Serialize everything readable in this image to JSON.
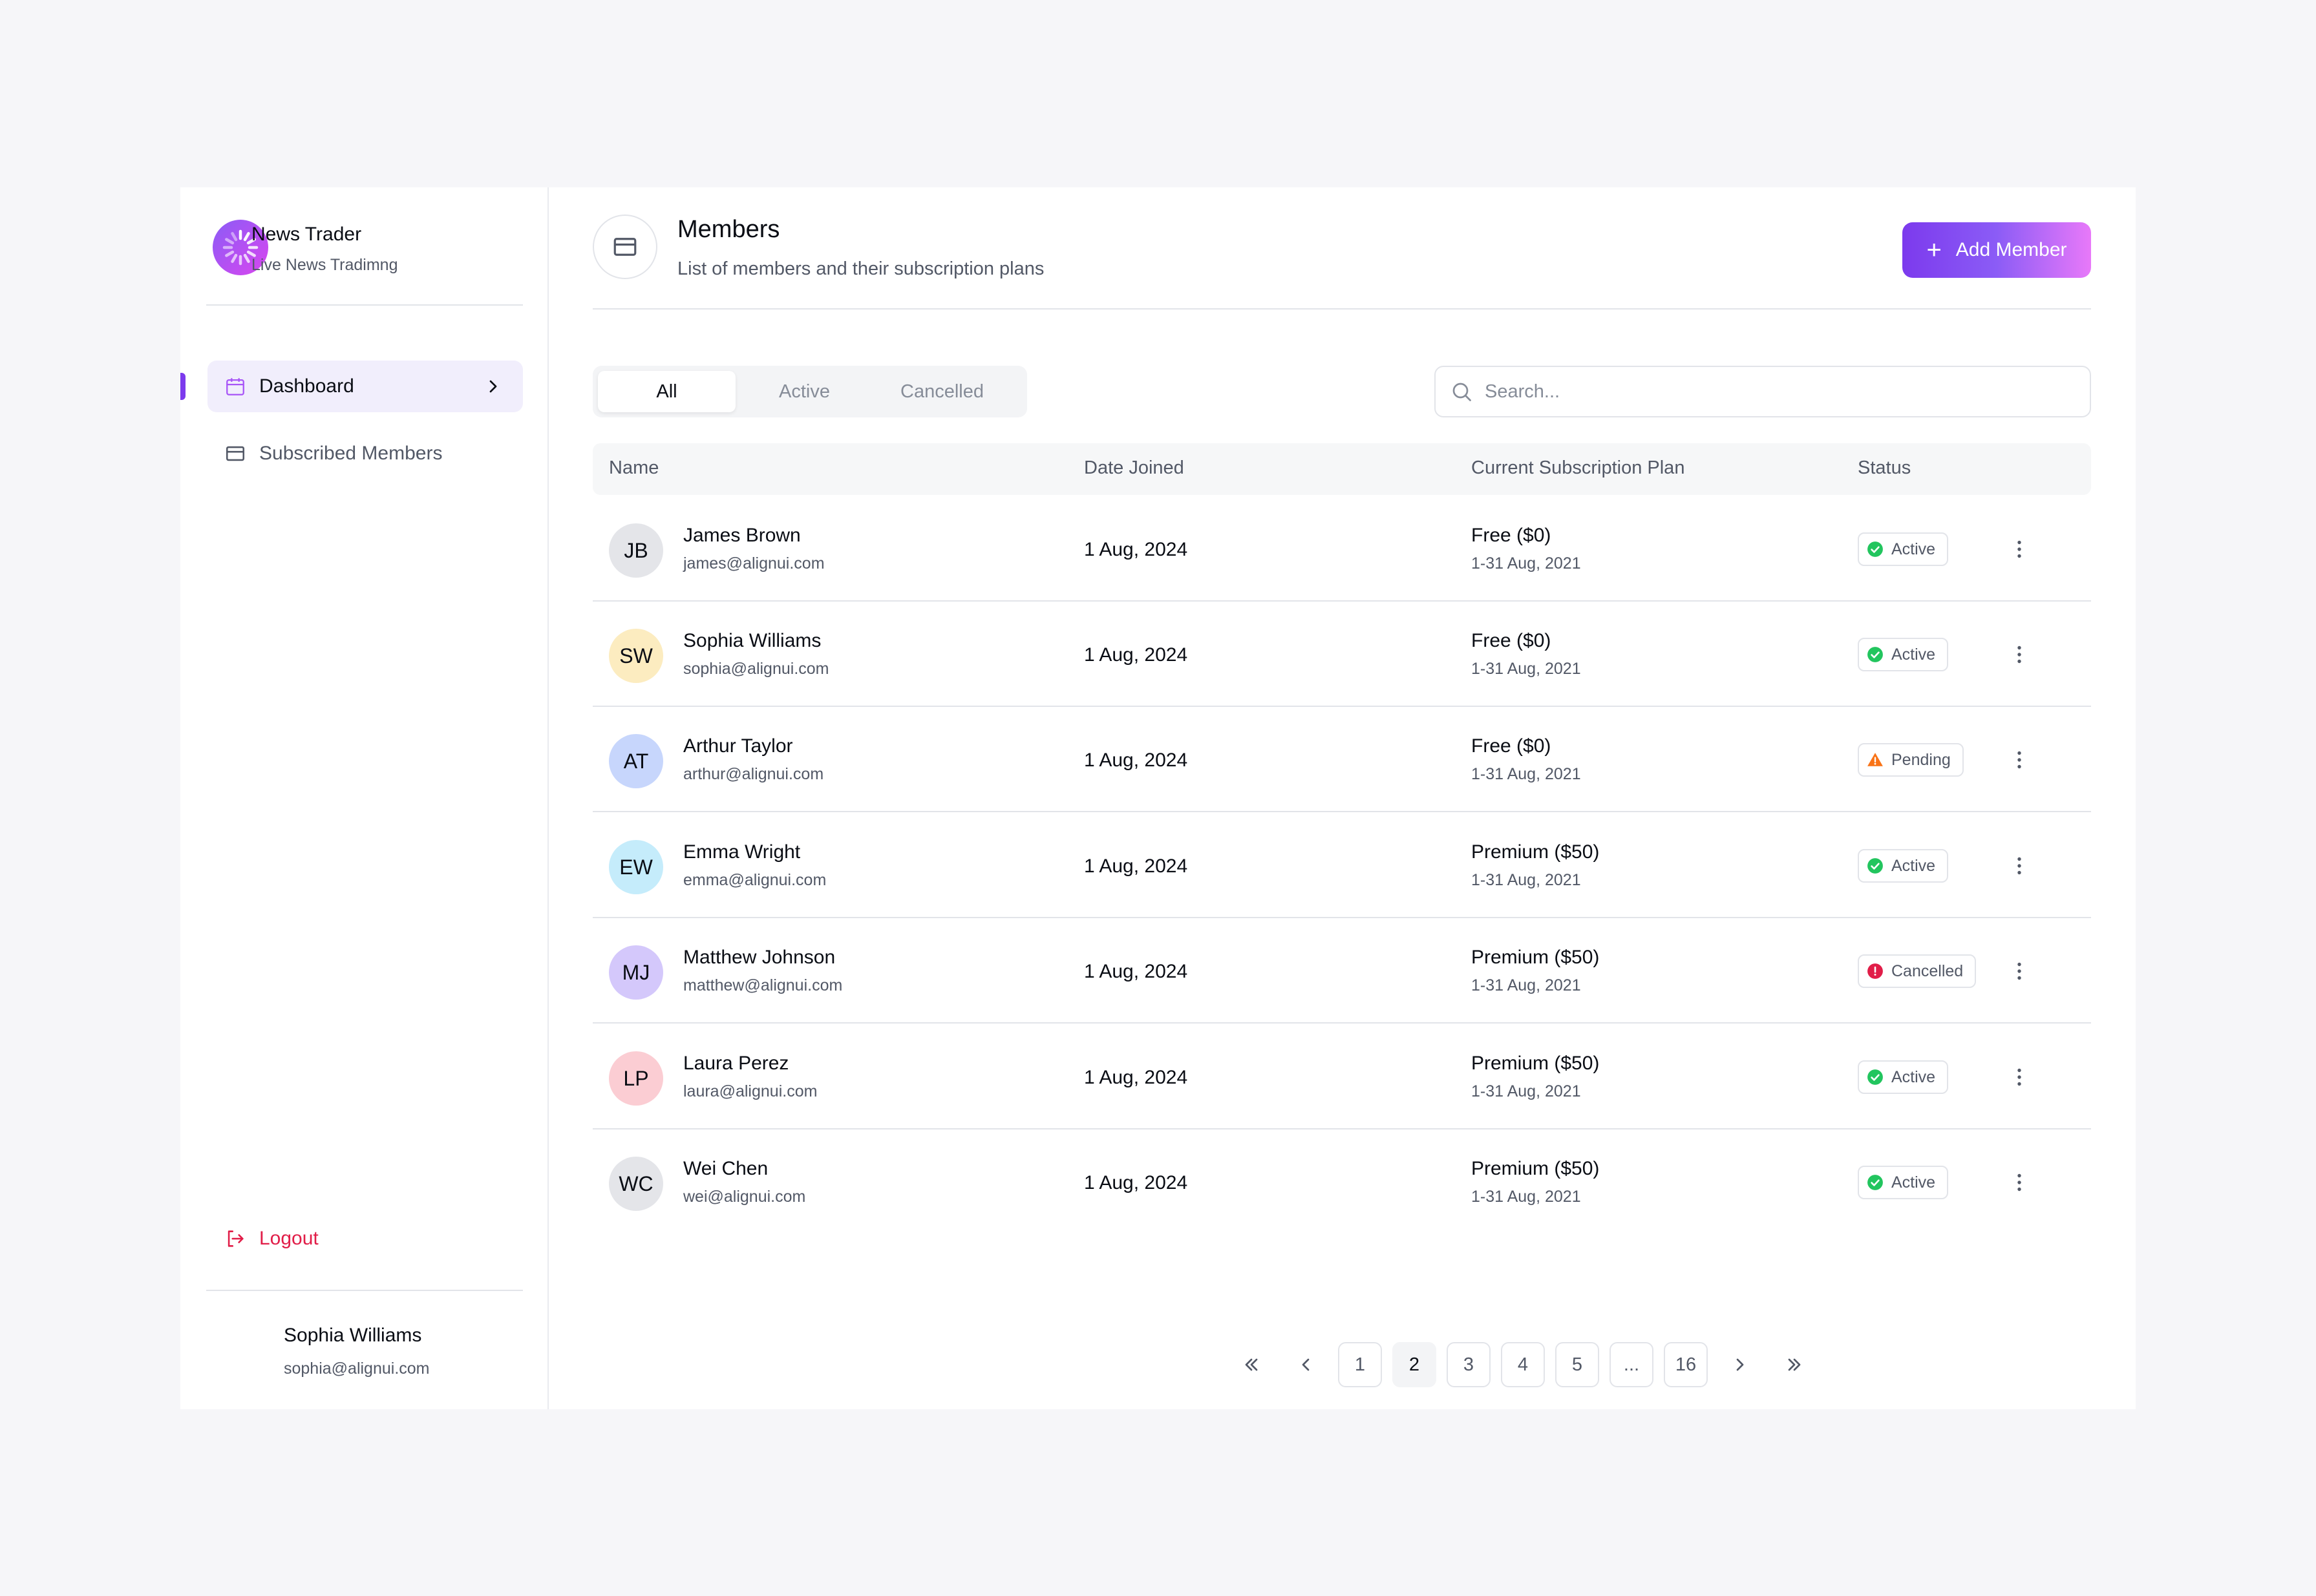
{
  "brand": {
    "name": "News Trader",
    "subtitle": "Live News Tradimng",
    "logo_icon": "spinner-logo-icon"
  },
  "sidebar": {
    "items": [
      {
        "label": "Dashboard",
        "icon": "calendar-icon",
        "active": true
      },
      {
        "label": "Subscribed Members",
        "icon": "card-icon",
        "active": false
      }
    ],
    "logout_label": "Logout"
  },
  "user": {
    "name": "Sophia Williams",
    "email": "sophia@alignui.com"
  },
  "header": {
    "title": "Members",
    "subtitle": "List of members and their subscription plans",
    "add_button": "Add Member"
  },
  "tabs": [
    "All",
    "Active",
    "Cancelled"
  ],
  "search": {
    "placeholder": "Search...",
    "value": ""
  },
  "table": {
    "columns": [
      "Name",
      "Date Joined",
      "Current Subscription Plan",
      "Status"
    ],
    "rows": [
      {
        "initials": "JB",
        "avatar_color": "#e4e5e9",
        "name": "James Brown",
        "email": "james@alignui.com",
        "date": "1 Aug, 2024",
        "plan": "Free ($0)",
        "range": "1-31 Aug, 2021",
        "status": "Active",
        "status_type": "active"
      },
      {
        "initials": "SW",
        "avatar_color": "#fcecc0",
        "name": "Sophia Williams",
        "email": "sophia@alignui.com",
        "date": "1 Aug, 2024",
        "plan": "Free ($0)",
        "range": "1-31 Aug, 2021",
        "status": "Active",
        "status_type": "active"
      },
      {
        "initials": "AT",
        "avatar_color": "#c7d6fc",
        "name": "Arthur Taylor",
        "email": "arthur@alignui.com",
        "date": "1 Aug, 2024",
        "plan": "Free ($0)",
        "range": "1-31 Aug, 2021",
        "status": "Pending",
        "status_type": "pending"
      },
      {
        "initials": "EW",
        "avatar_color": "#c5ecfb",
        "name": "Emma Wright",
        "email": "emma@alignui.com",
        "date": "1 Aug, 2024",
        "plan": "Premium ($50)",
        "range": "1-31 Aug, 2021",
        "status": "Active",
        "status_type": "active"
      },
      {
        "initials": "MJ",
        "avatar_color": "#d4c8fb",
        "name": "Matthew Johnson",
        "email": "matthew@alignui.com",
        "date": "1 Aug, 2024",
        "plan": "Premium ($50)",
        "range": "1-31 Aug, 2021",
        "status": "Cancelled",
        "status_type": "cancelled"
      },
      {
        "initials": "LP",
        "avatar_color": "#fbcdd3",
        "name": "Laura Perez",
        "email": "laura@alignui.com",
        "date": "1 Aug, 2024",
        "plan": "Premium ($50)",
        "range": "1-31 Aug, 2021",
        "status": "Active",
        "status_type": "active"
      },
      {
        "initials": "WC",
        "avatar_color": "#e4e5e9",
        "name": "Wei Chen",
        "email": "wei@alignui.com",
        "date": "1 Aug, 2024",
        "plan": "Premium ($50)",
        "range": "1-31 Aug, 2021",
        "status": "Active",
        "status_type": "active"
      }
    ]
  },
  "pagination": {
    "pages": [
      "1",
      "2",
      "3",
      "4",
      "5",
      "...",
      "16"
    ],
    "current": "2"
  },
  "colors": {
    "accent": "#7c3aed",
    "active": "#22c55e",
    "pending": "#f97316",
    "cancelled": "#e11d48"
  }
}
